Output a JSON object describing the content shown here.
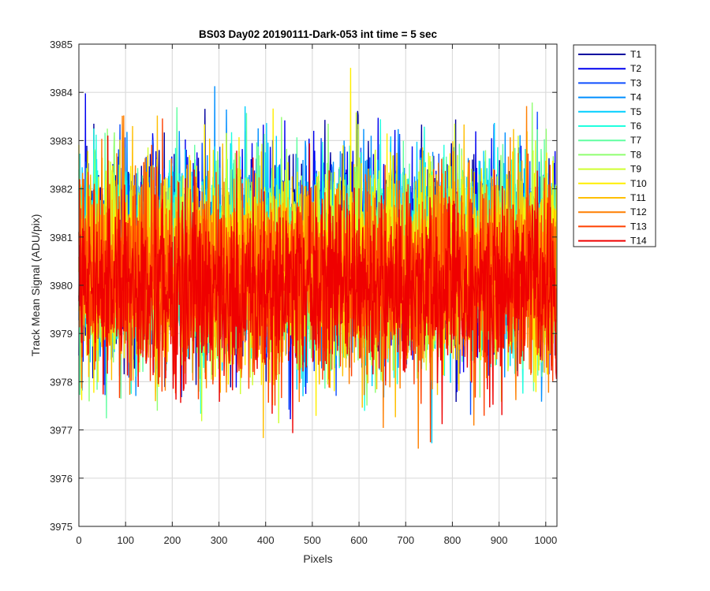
{
  "chart_data": {
    "type": "line",
    "title": "BS03 Day02 20190111-Dark-053 int time = 5 sec",
    "xlabel": "Pixels",
    "ylabel": "Track Mean Signal (ADU/pix)",
    "xlim": [
      0,
      1024
    ],
    "ylim": [
      3975,
      3985
    ],
    "xticks": [
      0,
      100,
      200,
      300,
      400,
      500,
      600,
      700,
      800,
      900,
      1000
    ],
    "yticks": [
      3975,
      3976,
      3977,
      3978,
      3979,
      3980,
      3981,
      3982,
      3983,
      3984,
      3985
    ],
    "xtick_labels": [
      "0",
      "100",
      "200",
      "300",
      "400",
      "500",
      "600",
      "700",
      "800",
      "900",
      "1000"
    ],
    "ytick_labels": [
      "3975",
      "3976",
      "3977",
      "3978",
      "3979",
      "3980",
      "3981",
      "3982",
      "3983",
      "3984",
      "3985"
    ],
    "grid": true,
    "legend_position": "outside-top-right",
    "n_points_per_series": 1024,
    "series": [
      {
        "name": "T1",
        "color": "#00009f",
        "mean": 3980.75,
        "std": 1.0
      },
      {
        "name": "T2",
        "color": "#0000ef",
        "mean": 3980.7,
        "std": 1.0
      },
      {
        "name": "T3",
        "color": "#0f4fff",
        "mean": 3980.65,
        "std": 1.0
      },
      {
        "name": "T4",
        "color": "#008fff",
        "mean": 3980.6,
        "std": 1.0
      },
      {
        "name": "T5",
        "color": "#00cfff",
        "mean": 3980.6,
        "std": 1.0
      },
      {
        "name": "T6",
        "color": "#20ffdf",
        "mean": 3980.55,
        "std": 1.0
      },
      {
        "name": "T7",
        "color": "#60ffa0",
        "mean": 3980.5,
        "std": 1.0
      },
      {
        "name": "T8",
        "color": "#8fff70",
        "mean": 3980.5,
        "std": 1.0
      },
      {
        "name": "T9",
        "color": "#cfff30",
        "mean": 3980.45,
        "std": 1.0
      },
      {
        "name": "T10",
        "color": "#ffef00",
        "mean": 3980.4,
        "std": 1.0
      },
      {
        "name": "T11",
        "color": "#ffbf00",
        "mean": 3980.3,
        "std": 1.0
      },
      {
        "name": "T12",
        "color": "#ff7f00",
        "mean": 3980.2,
        "std": 1.0
      },
      {
        "name": "T13",
        "color": "#ff4000",
        "mean": 3980.1,
        "std": 1.0
      },
      {
        "name": "T14",
        "color": "#ef0000",
        "mean": 3979.9,
        "std": 0.95
      }
    ]
  }
}
